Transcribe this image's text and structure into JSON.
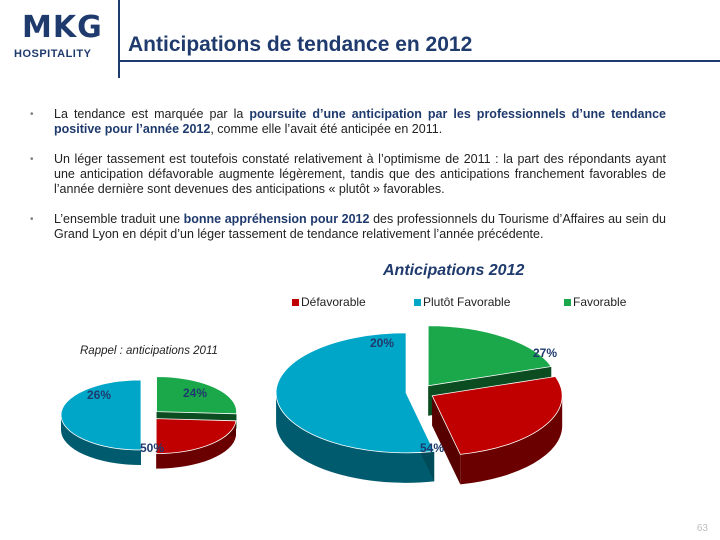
{
  "logo": {
    "brand": "MKG",
    "sub": "HOSPITALITY"
  },
  "page": {
    "title": "Anticipations de tendance en 2012",
    "number": "63"
  },
  "bullets": [
    {
      "pre": "La tendance est marquée par la ",
      "highlight": "poursuite d’une anticipation par les professionnels d’une tendance positive pour l’année 2012",
      "post": ", comme elle l’avait été anticipée en 2011."
    },
    {
      "pre": "Un léger tassement est toutefois constaté relativement à l’optimisme de 2011 : la part des répondants ayant une anticipation défavorable augmente légèrement, tandis que des anticipations franchement favorables de l’année dernière sont devenues des anticipations « plutôt » favorables.",
      "highlight": "",
      "post": ""
    },
    {
      "pre": "L’ensemble traduit une ",
      "highlight": "bonne appréhension pour 2012",
      "post": " des professionnels du Tourisme d’Affaires au sein du Grand Lyon en dépit d’un léger tassement de tendance relativement l’année précédente."
    }
  ],
  "chart_data": [
    {
      "type": "pie",
      "title": "Anticipations 2012",
      "categories": [
        "Défavorable",
        "Plutôt Favorable",
        "Favorable"
      ],
      "values": [
        27,
        54,
        20
      ],
      "labels": [
        "27%",
        "54%",
        "20%"
      ],
      "colors": [
        "#c00000",
        "#00a6c8",
        "#1aa84a"
      ],
      "legend": "top"
    },
    {
      "type": "pie",
      "title": "Rappel : anticipations 2011",
      "categories": [
        "Défavorable",
        "Plutôt Favorable",
        "Favorable"
      ],
      "values": [
        24,
        50,
        26
      ],
      "labels": [
        "24%",
        "50%",
        "26%"
      ],
      "colors": [
        "#c00000",
        "#00a6c8",
        "#1aa84a"
      ]
    }
  ]
}
